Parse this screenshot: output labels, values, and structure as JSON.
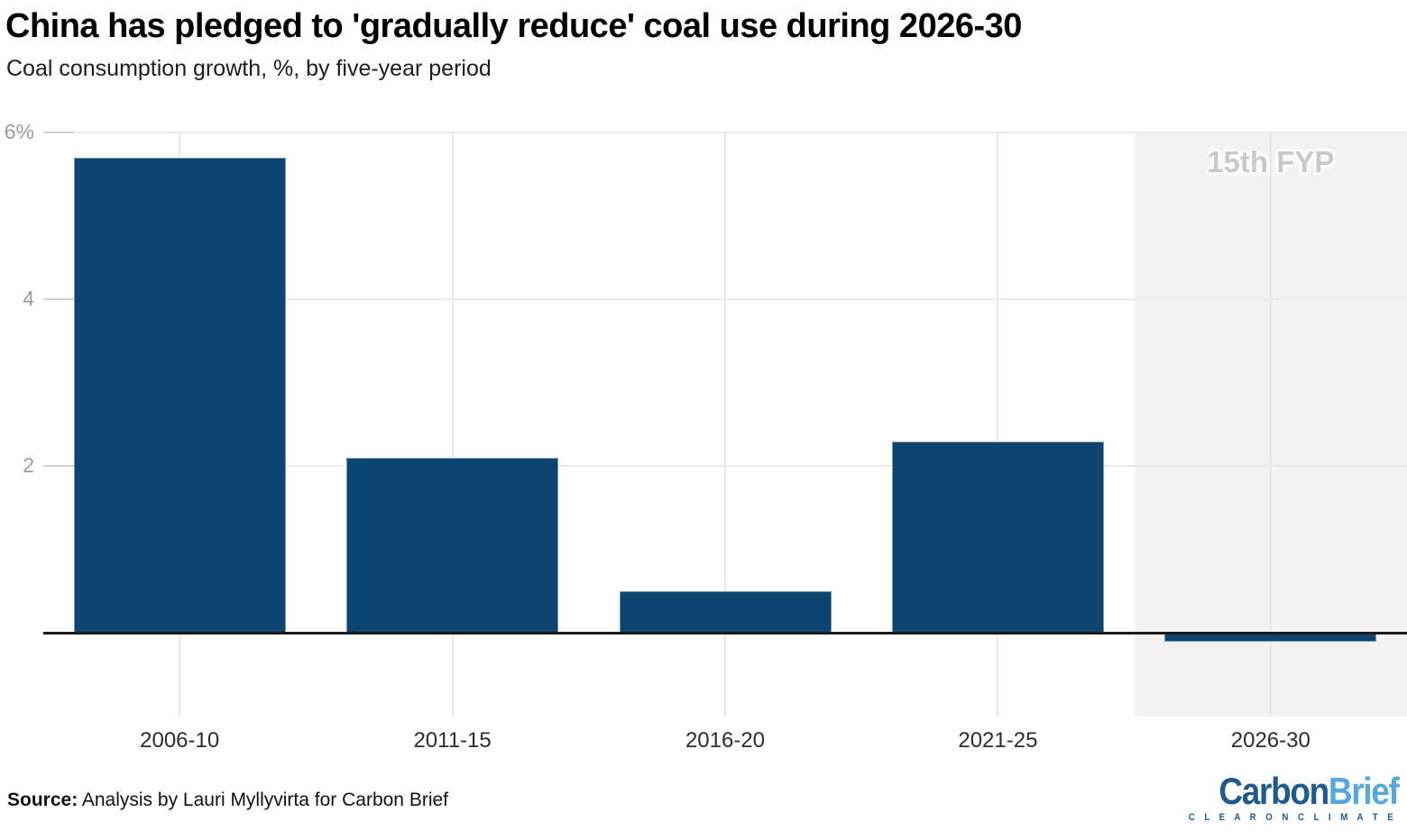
{
  "header": {
    "title": "China has pledged to 'gradually reduce' coal use during 2026-30",
    "subtitle": "Coal consumption growth, %, by five-year period"
  },
  "chart_data": {
    "type": "bar",
    "title": "China has pledged to 'gradually reduce' coal use during 2026-30",
    "subtitle": "Coal consumption growth, %, by five-year period",
    "categories": [
      "2006-10",
      "2011-15",
      "2016-20",
      "2021-25",
      "2026-30"
    ],
    "values": [
      5.7,
      2.1,
      0.5,
      2.3,
      -0.1
    ],
    "xlabel": "",
    "ylabel": "Coal consumption growth, %",
    "ylim": [
      -1,
      6
    ],
    "yticks": [
      {
        "value": 6,
        "label": "6%"
      },
      {
        "value": 4,
        "label": "4"
      },
      {
        "value": 2,
        "label": "2"
      }
    ],
    "grid": true,
    "bar_color": "#0c4572",
    "annotation": {
      "label": "15th FYP",
      "category": "2026-30",
      "band_color": "#f2f2f2",
      "label_color": "#c9c9c9"
    }
  },
  "footer": {
    "source_label": "Source:",
    "source_text": " Analysis by Lauri Myllyvirta for Carbon Brief",
    "logo": {
      "part1": "Carbon",
      "part2": "Brief",
      "tagline": "C L E A R   O N   C L I M A T E",
      "color1": "#1e5a8b",
      "color2": "#55a7dd"
    }
  }
}
